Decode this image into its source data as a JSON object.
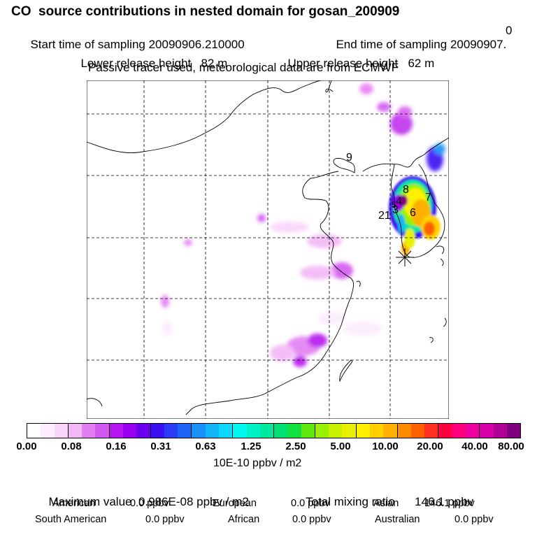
{
  "title": "CO  source contributions in nested domain for gosan_200909",
  "sampling": {
    "start_label": "Start time of sampling",
    "start_value": "20090906.210000",
    "end_label": "End time of sampling",
    "end_value": "20090907.",
    "end_suffix": "0"
  },
  "release": {
    "lower_label": "Lower release height",
    "lower_value": "82 m",
    "upper_label": "Upper release height",
    "upper_value": "62 m"
  },
  "note": "Passive tracer used, meteorological data are from ECMWF",
  "map": {
    "track_labels": [
      "9",
      "8",
      "7",
      "4",
      "3",
      "5",
      "6",
      "21"
    ],
    "receptor_icon": "asterisk-icon"
  },
  "colorbar": {
    "ticks": [
      "0.00",
      "0.08",
      "0.16",
      "0.31",
      "0.63",
      "1.25",
      "2.50",
      "5.00",
      "10.00",
      "20.00",
      "40.00",
      "80.00"
    ],
    "colors": [
      "#ffffff",
      "#fcecfc",
      "#f9d5fa",
      "#f2b8f5",
      "#e27ef2",
      "#d25af0",
      "#b716ee",
      "#9a00f0",
      "#6a00f0",
      "#3a10f5",
      "#2a3cf6",
      "#1a64f6",
      "#1890f6",
      "#12b4f6",
      "#0ad8f6",
      "#00f8f0",
      "#00f0c8",
      "#00e8a0",
      "#00e070",
      "#10e040",
      "#60e810",
      "#98f000",
      "#c8f000",
      "#e8f000",
      "#fff000",
      "#ffd000",
      "#ffb000",
      "#ff8a00",
      "#ff6000",
      "#ff3020",
      "#ff0040",
      "#ff0080",
      "#f000a0",
      "#d800a8",
      "#b00098",
      "#800080"
    ],
    "units": "10E-10 ppbv / m2"
  },
  "stats": {
    "max_label": "Maximum value",
    "max_value": "0.986E-08 ppbv / m2",
    "total_label": "Total mixing ratio",
    "total_value": "146.1 ppbv",
    "regions": [
      {
        "name": "American",
        "value": "0.0 ppbv"
      },
      {
        "name": "European",
        "value": "0.0 ppbv"
      },
      {
        "name": "Asian",
        "value": "146.1 ppbv"
      },
      {
        "name": "South American",
        "value": "0.0 ppbv"
      },
      {
        "name": "African",
        "value": "0.0 ppbv"
      },
      {
        "name": "Australian",
        "value": "0.0 ppbv"
      }
    ]
  }
}
